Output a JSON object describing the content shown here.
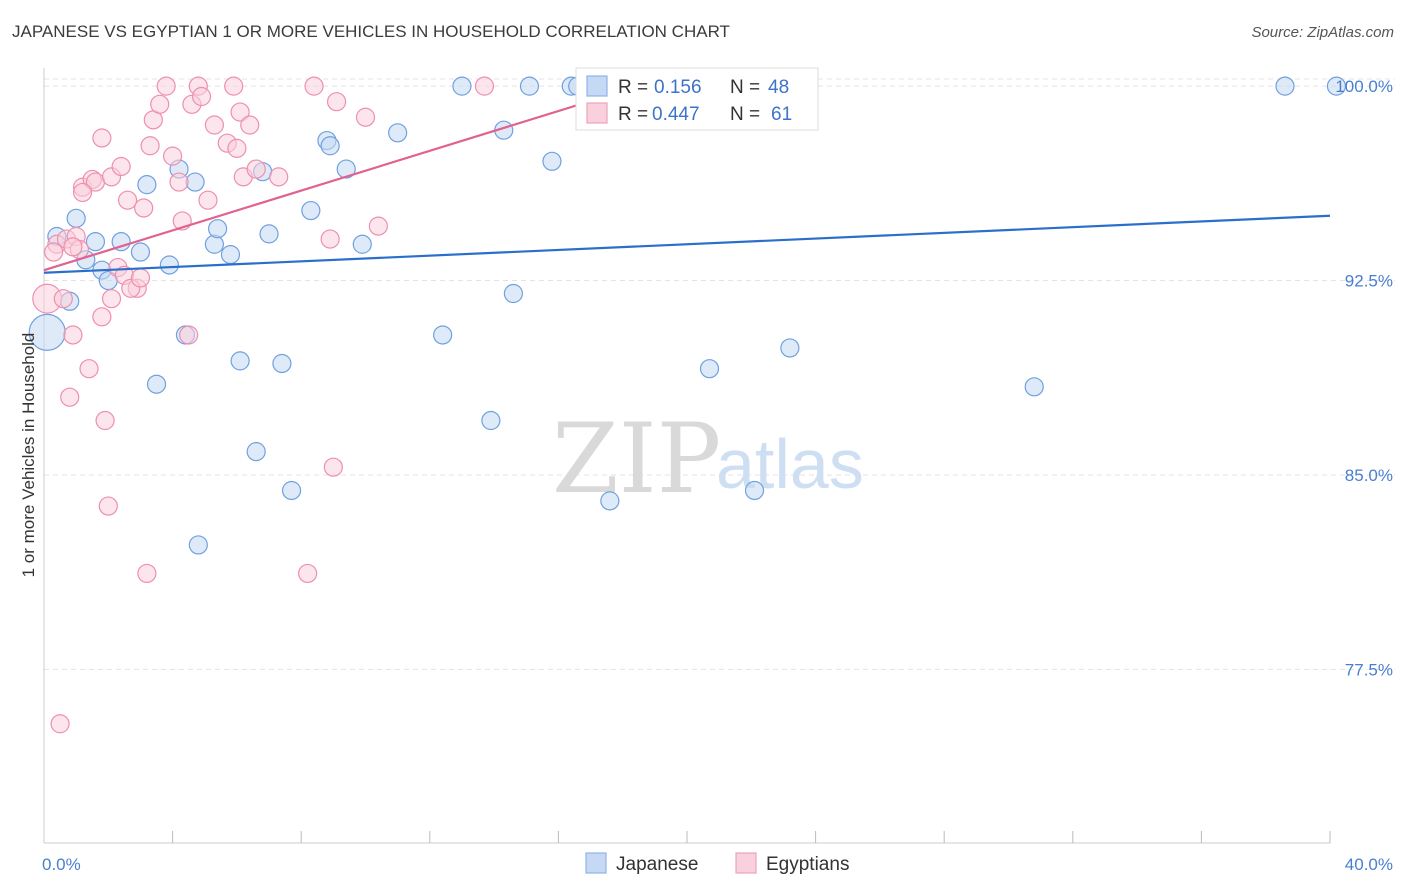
{
  "title": "JAPANESE VS EGYPTIAN 1 OR MORE VEHICLES IN HOUSEHOLD CORRELATION CHART",
  "source": "Source: ZipAtlas.com",
  "watermark": {
    "part1": "ZIP",
    "part2": "atlas"
  },
  "legend_top": {
    "rows": [
      {
        "r_label": "R =",
        "r_value": "0.156",
        "n_label": "N =",
        "n_value": "48",
        "color": "#a9c7ee"
      },
      {
        "r_label": "R =",
        "r_value": "0.447",
        "n_label": "N =",
        "n_value": "61",
        "color": "#f6b8cb"
      }
    ]
  },
  "legend_bottom": [
    {
      "label": "Japanese",
      "color": "#a9c7ee"
    },
    {
      "label": "Egyptians",
      "color": "#f6b8cb"
    }
  ],
  "chart_data": {
    "type": "scatter",
    "xlabel": "",
    "ylabel": "1 or more Vehicles in Household",
    "xlim": [
      0,
      40
    ],
    "ylim": [
      70.8,
      100.7
    ],
    "x_tick_labels": [
      {
        "value": 0,
        "label": "0.0%"
      },
      {
        "value": 40,
        "label": "40.0%"
      }
    ],
    "y_tick_labels": [
      {
        "value": 100.0,
        "label": "100.0%"
      },
      {
        "value": 92.5,
        "label": "92.5%"
      },
      {
        "value": 85.0,
        "label": "85.0%"
      },
      {
        "value": 77.5,
        "label": "77.5%"
      }
    ],
    "grid": "horizontal dashed",
    "series": [
      {
        "name": "Japanese",
        "color": "#6fa0e0",
        "fill": "#c5d9f4",
        "trend": {
          "x": [
            0,
            40
          ],
          "y": [
            92.8,
            95.0
          ],
          "color": "#2b6fcc"
        },
        "points": [
          [
            0.1,
            90.5,
            2.0
          ],
          [
            0.4,
            94.2,
            1.0
          ],
          [
            0.8,
            91.7,
            1.0
          ],
          [
            1.0,
            94.9,
            1.0
          ],
          [
            1.3,
            93.3,
            1.0
          ],
          [
            1.6,
            94.0,
            1.0
          ],
          [
            1.8,
            92.9,
            1.0
          ],
          [
            2.0,
            92.5,
            1.0
          ],
          [
            2.4,
            94.0,
            1.0
          ],
          [
            3.0,
            93.6,
            1.0
          ],
          [
            3.2,
            96.2,
            1.0
          ],
          [
            3.5,
            88.5,
            1.0
          ],
          [
            3.9,
            93.1,
            1.0
          ],
          [
            4.2,
            96.8,
            1.0
          ],
          [
            4.4,
            90.4,
            1.0
          ],
          [
            4.7,
            96.3,
            1.0
          ],
          [
            4.8,
            82.3,
            1.0
          ],
          [
            5.3,
            93.9,
            1.0
          ],
          [
            5.4,
            94.5,
            1.0
          ],
          [
            5.8,
            93.5,
            1.0
          ],
          [
            6.1,
            89.4,
            1.0
          ],
          [
            6.6,
            85.9,
            1.0
          ],
          [
            6.8,
            96.7,
            1.0
          ],
          [
            7.0,
            94.3,
            1.0
          ],
          [
            7.4,
            89.3,
            1.0
          ],
          [
            7.7,
            84.4,
            1.0
          ],
          [
            8.3,
            95.2,
            1.0
          ],
          [
            8.8,
            97.9,
            1.0
          ],
          [
            8.9,
            97.7,
            1.0
          ],
          [
            9.4,
            96.8,
            1.0
          ],
          [
            9.9,
            93.9,
            1.0
          ],
          [
            11.0,
            98.2,
            1.0
          ],
          [
            12.4,
            90.4,
            1.0
          ],
          [
            13.0,
            100.0,
            1.0
          ],
          [
            13.9,
            87.1,
            1.0
          ],
          [
            14.3,
            98.3,
            1.0
          ],
          [
            14.6,
            92.0,
            1.0
          ],
          [
            15.1,
            100.0,
            1.0
          ],
          [
            15.8,
            97.1,
            1.0
          ],
          [
            16.4,
            100.0,
            1.0
          ],
          [
            17.6,
            84.0,
            1.0
          ],
          [
            20.7,
            89.1,
            1.0
          ],
          [
            22.1,
            84.4,
            1.0
          ],
          [
            23.2,
            89.9,
            1.0
          ],
          [
            30.8,
            88.4,
            1.0
          ],
          [
            38.6,
            100.0,
            1.0
          ],
          [
            40.2,
            100.0,
            1.0
          ],
          [
            16.6,
            100.0,
            1.0
          ]
        ]
      },
      {
        "name": "Egyptians",
        "color": "#ee8fae",
        "fill": "#f9d0dd",
        "trend": {
          "x": [
            0,
            18.5
          ],
          "y": [
            92.9,
            100.0
          ],
          "color": "#e0628f"
        },
        "points": [
          [
            0.1,
            91.8,
            1.6
          ],
          [
            0.4,
            93.9,
            1.0
          ],
          [
            0.5,
            75.4,
            1.0
          ],
          [
            0.6,
            91.8,
            1.0
          ],
          [
            0.7,
            94.1,
            1.0
          ],
          [
            0.9,
            90.4,
            1.0
          ],
          [
            1.0,
            94.2,
            1.0
          ],
          [
            1.2,
            96.1,
            1.0
          ],
          [
            1.4,
            89.1,
            1.0
          ],
          [
            1.5,
            96.4,
            1.0
          ],
          [
            1.6,
            96.3,
            1.0
          ],
          [
            1.8,
            91.1,
            1.0
          ],
          [
            1.8,
            98.0,
            1.0
          ],
          [
            1.9,
            87.1,
            1.0
          ],
          [
            2.0,
            83.8,
            1.0
          ],
          [
            2.1,
            96.5,
            1.0
          ],
          [
            2.3,
            93.0,
            1.0
          ],
          [
            2.4,
            96.9,
            1.0
          ],
          [
            2.5,
            92.7,
            1.0
          ],
          [
            2.6,
            95.6,
            1.0
          ],
          [
            2.9,
            92.2,
            1.0
          ],
          [
            3.1,
            95.3,
            1.0
          ],
          [
            3.2,
            81.2,
            1.0
          ],
          [
            3.3,
            97.7,
            1.0
          ],
          [
            3.4,
            98.7,
            1.0
          ],
          [
            3.6,
            99.3,
            1.0
          ],
          [
            3.8,
            100.0,
            1.0
          ],
          [
            4.0,
            97.3,
            1.0
          ],
          [
            4.2,
            96.3,
            1.0
          ],
          [
            4.3,
            94.8,
            1.0
          ],
          [
            4.5,
            90.4,
            1.0
          ],
          [
            4.6,
            99.3,
            1.0
          ],
          [
            4.8,
            100.0,
            1.0
          ],
          [
            4.9,
            99.6,
            1.0
          ],
          [
            5.3,
            98.5,
            1.0
          ],
          [
            5.7,
            97.8,
            1.0
          ],
          [
            5.9,
            100.0,
            1.0
          ],
          [
            6.1,
            99.0,
            1.0
          ],
          [
            6.2,
            96.5,
            1.0
          ],
          [
            6.4,
            98.5,
            1.0
          ],
          [
            6.6,
            96.8,
            1.0
          ],
          [
            7.3,
            96.5,
            1.0
          ],
          [
            8.2,
            81.2,
            1.0
          ],
          [
            8.4,
            100.0,
            1.0
          ],
          [
            8.9,
            94.1,
            1.0
          ],
          [
            9.0,
            85.3,
            1.0
          ],
          [
            9.1,
            99.4,
            1.0
          ],
          [
            10.0,
            98.8,
            1.0
          ],
          [
            10.4,
            94.6,
            1.0
          ],
          [
            13.7,
            100.0,
            1.0
          ],
          [
            18.0,
            100.0,
            1.0
          ],
          [
            2.7,
            92.2,
            1.0
          ],
          [
            1.1,
            93.7,
            1.0
          ],
          [
            0.3,
            93.6,
            1.0
          ],
          [
            5.1,
            95.6,
            1.0
          ],
          [
            0.8,
            88.0,
            1.0
          ],
          [
            1.2,
            95.9,
            1.0
          ],
          [
            2.1,
            91.8,
            1.0
          ],
          [
            3.0,
            92.6,
            1.0
          ],
          [
            0.9,
            93.8,
            1.0
          ],
          [
            6.0,
            97.6,
            1.0
          ]
        ]
      }
    ]
  }
}
